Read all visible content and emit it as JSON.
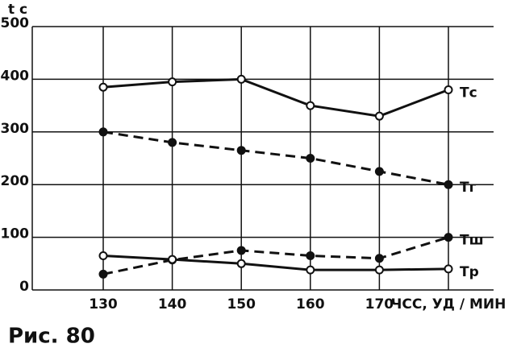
{
  "chart_data": {
    "type": "line",
    "y_label": "t c",
    "x_label": "ЧСС, УД / МИН",
    "caption": "Рис. 80",
    "categories": [
      "130",
      "140",
      "150",
      "160",
      "170",
      null
    ],
    "ylim": [
      0,
      500
    ],
    "yticks": [
      0,
      100,
      200,
      300,
      400,
      500
    ],
    "grid": true,
    "series": [
      {
        "name": "Тс",
        "color": "#111111",
        "marker": "open",
        "dashed": false,
        "values": [
          385,
          395,
          400,
          350,
          330,
          380
        ]
      },
      {
        "name": "Тг",
        "color": "#111111",
        "marker": "filled",
        "dashed": true,
        "values": [
          300,
          280,
          265,
          250,
          225,
          200
        ]
      },
      {
        "name": "Тш",
        "color": "#111111",
        "marker": "filled",
        "dashed": true,
        "values": [
          30,
          57,
          75,
          65,
          60,
          100
        ]
      },
      {
        "name": "Тр",
        "color": "#111111",
        "marker": "open",
        "dashed": false,
        "values": [
          65,
          58,
          50,
          38,
          38,
          40
        ]
      }
    ]
  }
}
